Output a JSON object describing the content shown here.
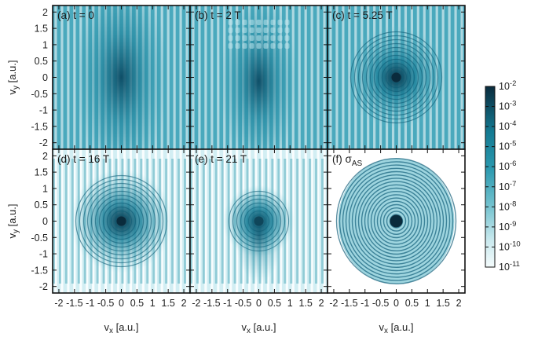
{
  "chart_data": {
    "type": "heatmap",
    "panels": [
      {
        "label": "(a) t = 0",
        "kind": "initial"
      },
      {
        "label": "(b) t = 2 T",
        "kind": "early"
      },
      {
        "label": "(c) t = 5.25 T",
        "kind": "mid"
      },
      {
        "label": "(d) t = 16 T",
        "kind": "late"
      },
      {
        "label": "(e) t = 21 T",
        "kind": "latest"
      },
      {
        "label": "(f) σ",
        "sub": "AS",
        "kind": "sigma"
      }
    ],
    "xlabel": "vx [a.u.]",
    "xlabel_main": "v",
    "xlabel_sub": "x",
    "xlabel_unit": " [a.u.]",
    "ylabel": "vy [a.u.]",
    "ylabel_main": "v",
    "ylabel_sub": "y",
    "ylabel_unit": " [a.u.]",
    "xlim": [
      -2.2,
      2.2
    ],
    "ylim": [
      -2.2,
      2.2
    ],
    "x_ticks": [
      "-2",
      "-1.5",
      "-1",
      "-0.5",
      "0",
      "0.5",
      "1",
      "1.5",
      "2"
    ],
    "x_tick_values": [
      -2,
      -1.5,
      -1,
      -0.5,
      0,
      0.5,
      1,
      1.5,
      2
    ],
    "y_ticks": [
      "2",
      "1.5",
      "1",
      "0.5",
      "0",
      "-0.5",
      "-1",
      "-1.5",
      "-2"
    ],
    "y_tick_values": [
      2,
      1.5,
      1,
      0.5,
      0,
      -0.5,
      -1,
      -1.5,
      -2
    ],
    "colorbar": {
      "scale": "log",
      "range": [
        1e-11,
        0.01
      ],
      "tick_exponents": [
        "-2",
        "-3",
        "-4",
        "-5",
        "-6",
        "-7",
        "-8",
        "-9",
        "-10",
        "-11"
      ],
      "tick_base": "10",
      "colors": [
        "#f4fbfc",
        "#0a2b3c"
      ]
    }
  }
}
